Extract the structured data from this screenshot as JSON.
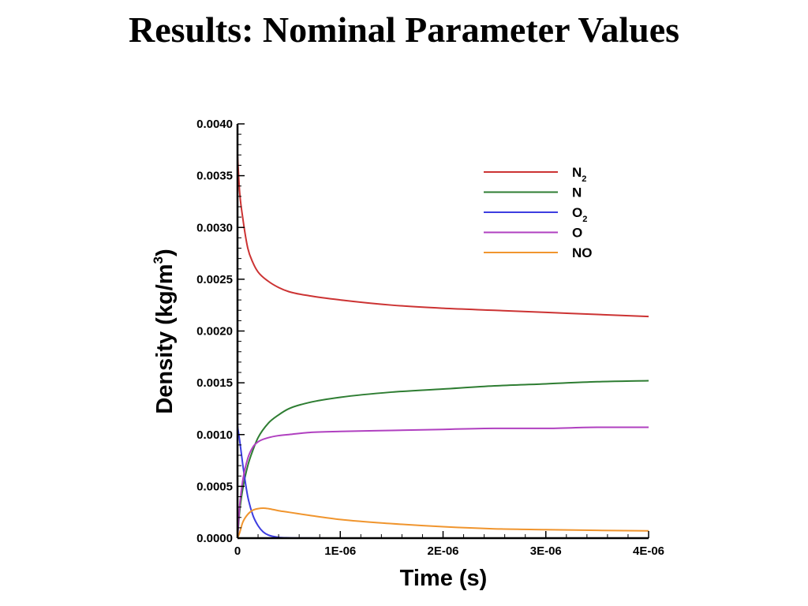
{
  "slide": {
    "title": "Results:  Nominal Parameter Values"
  },
  "chart_data": {
    "type": "line",
    "title": "",
    "xlabel": "Time (s)",
    "ylabel": "Density (kg/m3)",
    "ylabel_parts": {
      "main": "Density (kg/m",
      "sup": "3",
      "close": ")"
    },
    "xlim": [
      0,
      4e-06
    ],
    "ylim": [
      0,
      0.004
    ],
    "x_ticks": [
      0,
      1e-06,
      2e-06,
      3e-06,
      4e-06
    ],
    "x_tick_labels": [
      "0",
      "1E-06",
      "2E-06",
      "3E-06",
      "4E-06"
    ],
    "y_ticks": [
      0,
      0.0005,
      0.001,
      0.0015,
      0.002,
      0.0025,
      0.003,
      0.0035,
      0.004
    ],
    "y_tick_labels": [
      "0.0000",
      "0.0005",
      "0.0010",
      "0.0015",
      "0.0020",
      "0.0025",
      "0.0030",
      "0.0035",
      "0.0040"
    ],
    "grid": false,
    "legend_position": "top-right",
    "series": [
      {
        "name": "N2",
        "label_main": "N",
        "label_sub": "2",
        "color": "#cc3333",
        "x": [
          0,
          2e-08,
          5e-08,
          1e-07,
          1.5e-07,
          2e-07,
          3e-07,
          4e-07,
          5e-07,
          7e-07,
          1e-06,
          1.5e-06,
          2e-06,
          2.5e-06,
          3e-06,
          3.5e-06,
          4e-06
        ],
        "y": [
          0.0037,
          0.00335,
          0.0031,
          0.0028,
          0.00266,
          0.00257,
          0.00248,
          0.00242,
          0.00238,
          0.00234,
          0.0023,
          0.00225,
          0.00222,
          0.0022,
          0.00218,
          0.00216,
          0.00214
        ]
      },
      {
        "name": "N",
        "label_main": "N",
        "label_sub": "",
        "color": "#2e7d32",
        "x": [
          0,
          2e-08,
          5e-08,
          1e-07,
          1.5e-07,
          2e-07,
          3e-07,
          4e-07,
          5e-07,
          7e-07,
          1e-06,
          1.5e-06,
          2e-06,
          2.5e-06,
          3e-06,
          3.5e-06,
          4e-06
        ],
        "y": [
          0,
          0.00025,
          0.00047,
          0.0007,
          0.00085,
          0.00097,
          0.00111,
          0.00119,
          0.00125,
          0.00131,
          0.00136,
          0.00141,
          0.00144,
          0.00147,
          0.00149,
          0.00151,
          0.00152
        ]
      },
      {
        "name": "O2",
        "label_main": "O",
        "label_sub": "2",
        "color": "#3d3de0",
        "x": [
          0,
          2e-08,
          5e-08,
          7e-08,
          1e-07,
          1.5e-07,
          2e-07,
          2.5e-07,
          3e-07,
          4e-07,
          5e-07,
          7e-07,
          1e-06,
          2e-06,
          3e-06,
          4e-06
        ],
        "y": [
          0.00108,
          0.00095,
          0.00072,
          0.00058,
          0.0004,
          0.00022,
          0.00012,
          6e-05,
          3e-05,
          8e-06,
          3e-06,
          1e-06,
          0,
          0,
          0,
          0
        ]
      },
      {
        "name": "O",
        "label_main": "O",
        "label_sub": "",
        "color": "#b040c0",
        "x": [
          0,
          2e-08,
          5e-08,
          1e-07,
          1.5e-07,
          2e-07,
          3e-07,
          4e-07,
          5e-07,
          7e-07,
          1e-06,
          1.5e-06,
          2e-06,
          2.5e-06,
          3e-06,
          3.5e-06,
          4e-06
        ],
        "y": [
          0,
          0.0003,
          0.00055,
          0.00077,
          0.00088,
          0.00093,
          0.00097,
          0.00099,
          0.001,
          0.00102,
          0.00103,
          0.00104,
          0.00105,
          0.00106,
          0.00106,
          0.00107,
          0.00107
        ]
      },
      {
        "name": "NO",
        "label_main": "NO",
        "label_sub": "",
        "color": "#f0952e",
        "x": [
          0,
          2e-08,
          5e-08,
          1e-07,
          1.5e-07,
          2e-07,
          2.5e-07,
          3e-07,
          4e-07,
          5e-07,
          7e-07,
          1e-06,
          1.5e-06,
          2e-06,
          2.5e-06,
          3e-06,
          3.5e-06,
          4e-06
        ],
        "y": [
          0,
          5e-05,
          0.00015,
          0.00023,
          0.00027,
          0.000285,
          0.00029,
          0.000285,
          0.000265,
          0.00025,
          0.00022,
          0.00018,
          0.00014,
          0.00011,
          9e-05,
          8.2e-05,
          7.5e-05,
          7e-05
        ]
      }
    ]
  }
}
